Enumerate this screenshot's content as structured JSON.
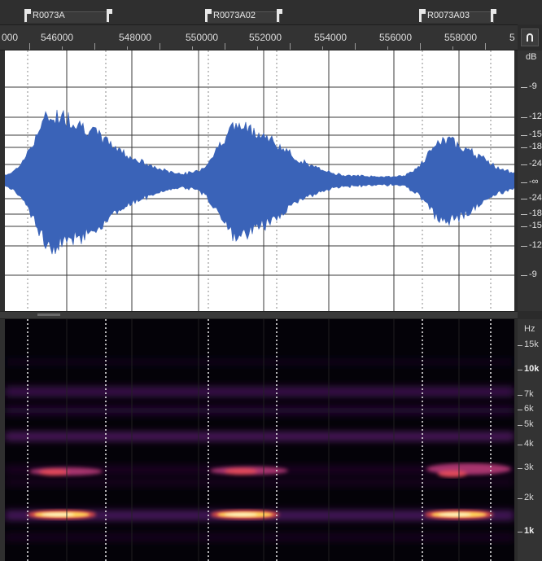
{
  "markers": [
    {
      "label": "R0073A"
    },
    {
      "label": "R0073A02"
    },
    {
      "label": "R0073A03"
    }
  ],
  "ruler": {
    "labels": [
      "000",
      "546000",
      "548000",
      "550000",
      "552000",
      "554000",
      "556000",
      "558000",
      "5"
    ]
  },
  "snap_button": {
    "icon": "magnet-icon"
  },
  "db_scale": {
    "unit": "dB",
    "labels": [
      "-9",
      "-12",
      "-15",
      "-18",
      "-24",
      "-∞",
      "-24",
      "-18",
      "-15",
      "-12",
      "-9"
    ]
  },
  "hz_scale": {
    "unit": "Hz",
    "labels": [
      "15k",
      "10k",
      "7k",
      "6k",
      "5k",
      "4k",
      "3k",
      "2k",
      "1k"
    ]
  },
  "colors": {
    "waveform": "#3a63b8",
    "spectrogram_hot": "#ffd75a",
    "spectrogram_band": "#7a2a8a",
    "panel_bg": "#333333"
  }
}
